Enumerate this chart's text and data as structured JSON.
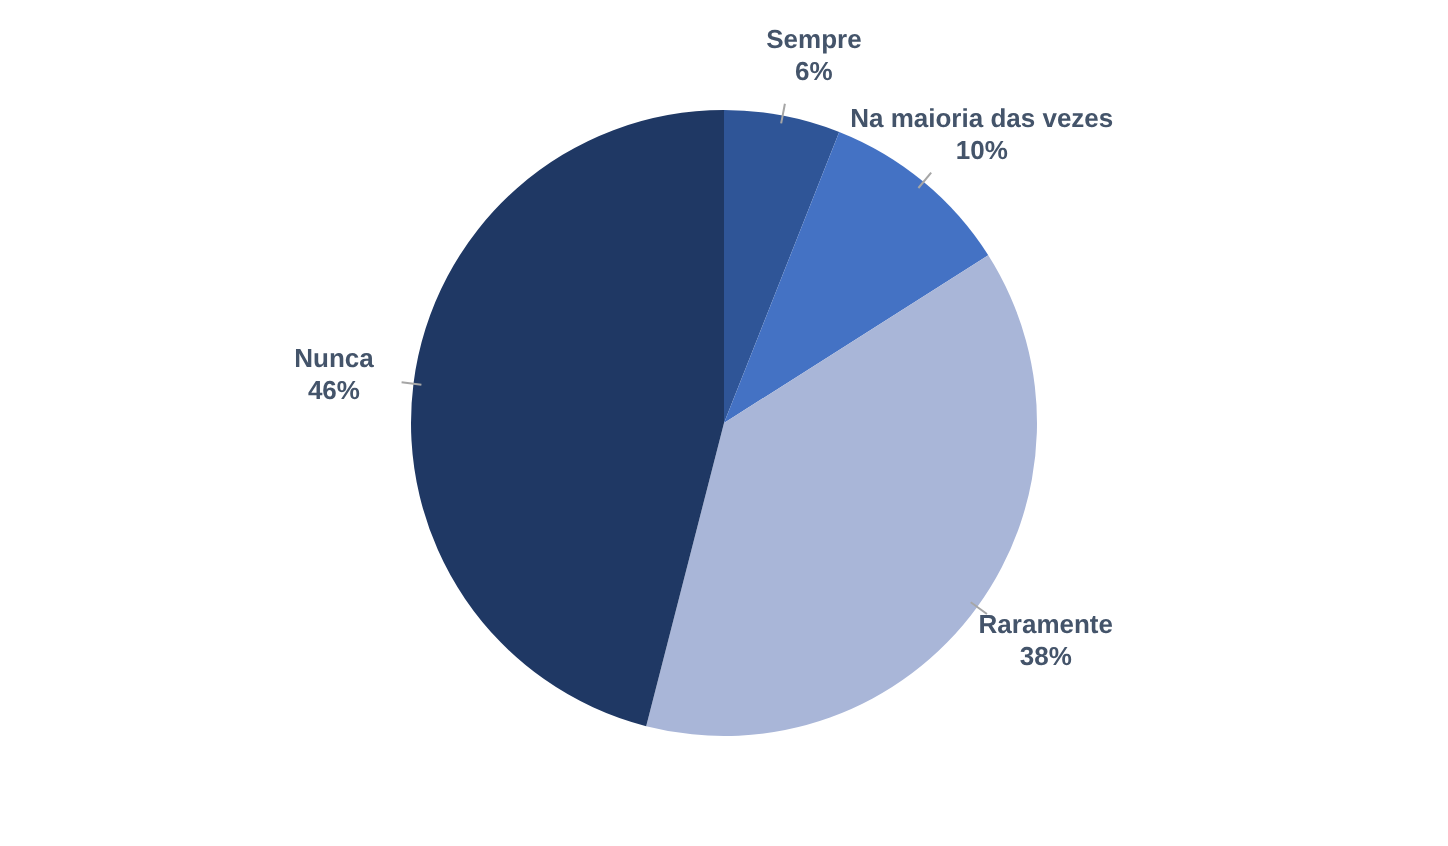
{
  "chart_data": {
    "type": "pie",
    "categories": [
      "Sempre",
      "Na maioria das vezes",
      "Raramente",
      "Nunca"
    ],
    "values": [
      6,
      10,
      38,
      46
    ],
    "colors": [
      "#2f5597",
      "#4472c4",
      "#a9b6d8",
      "#1f3864"
    ],
    "value_labels": [
      "6%",
      "10%",
      "38%",
      "46%"
    ],
    "legend": false
  }
}
